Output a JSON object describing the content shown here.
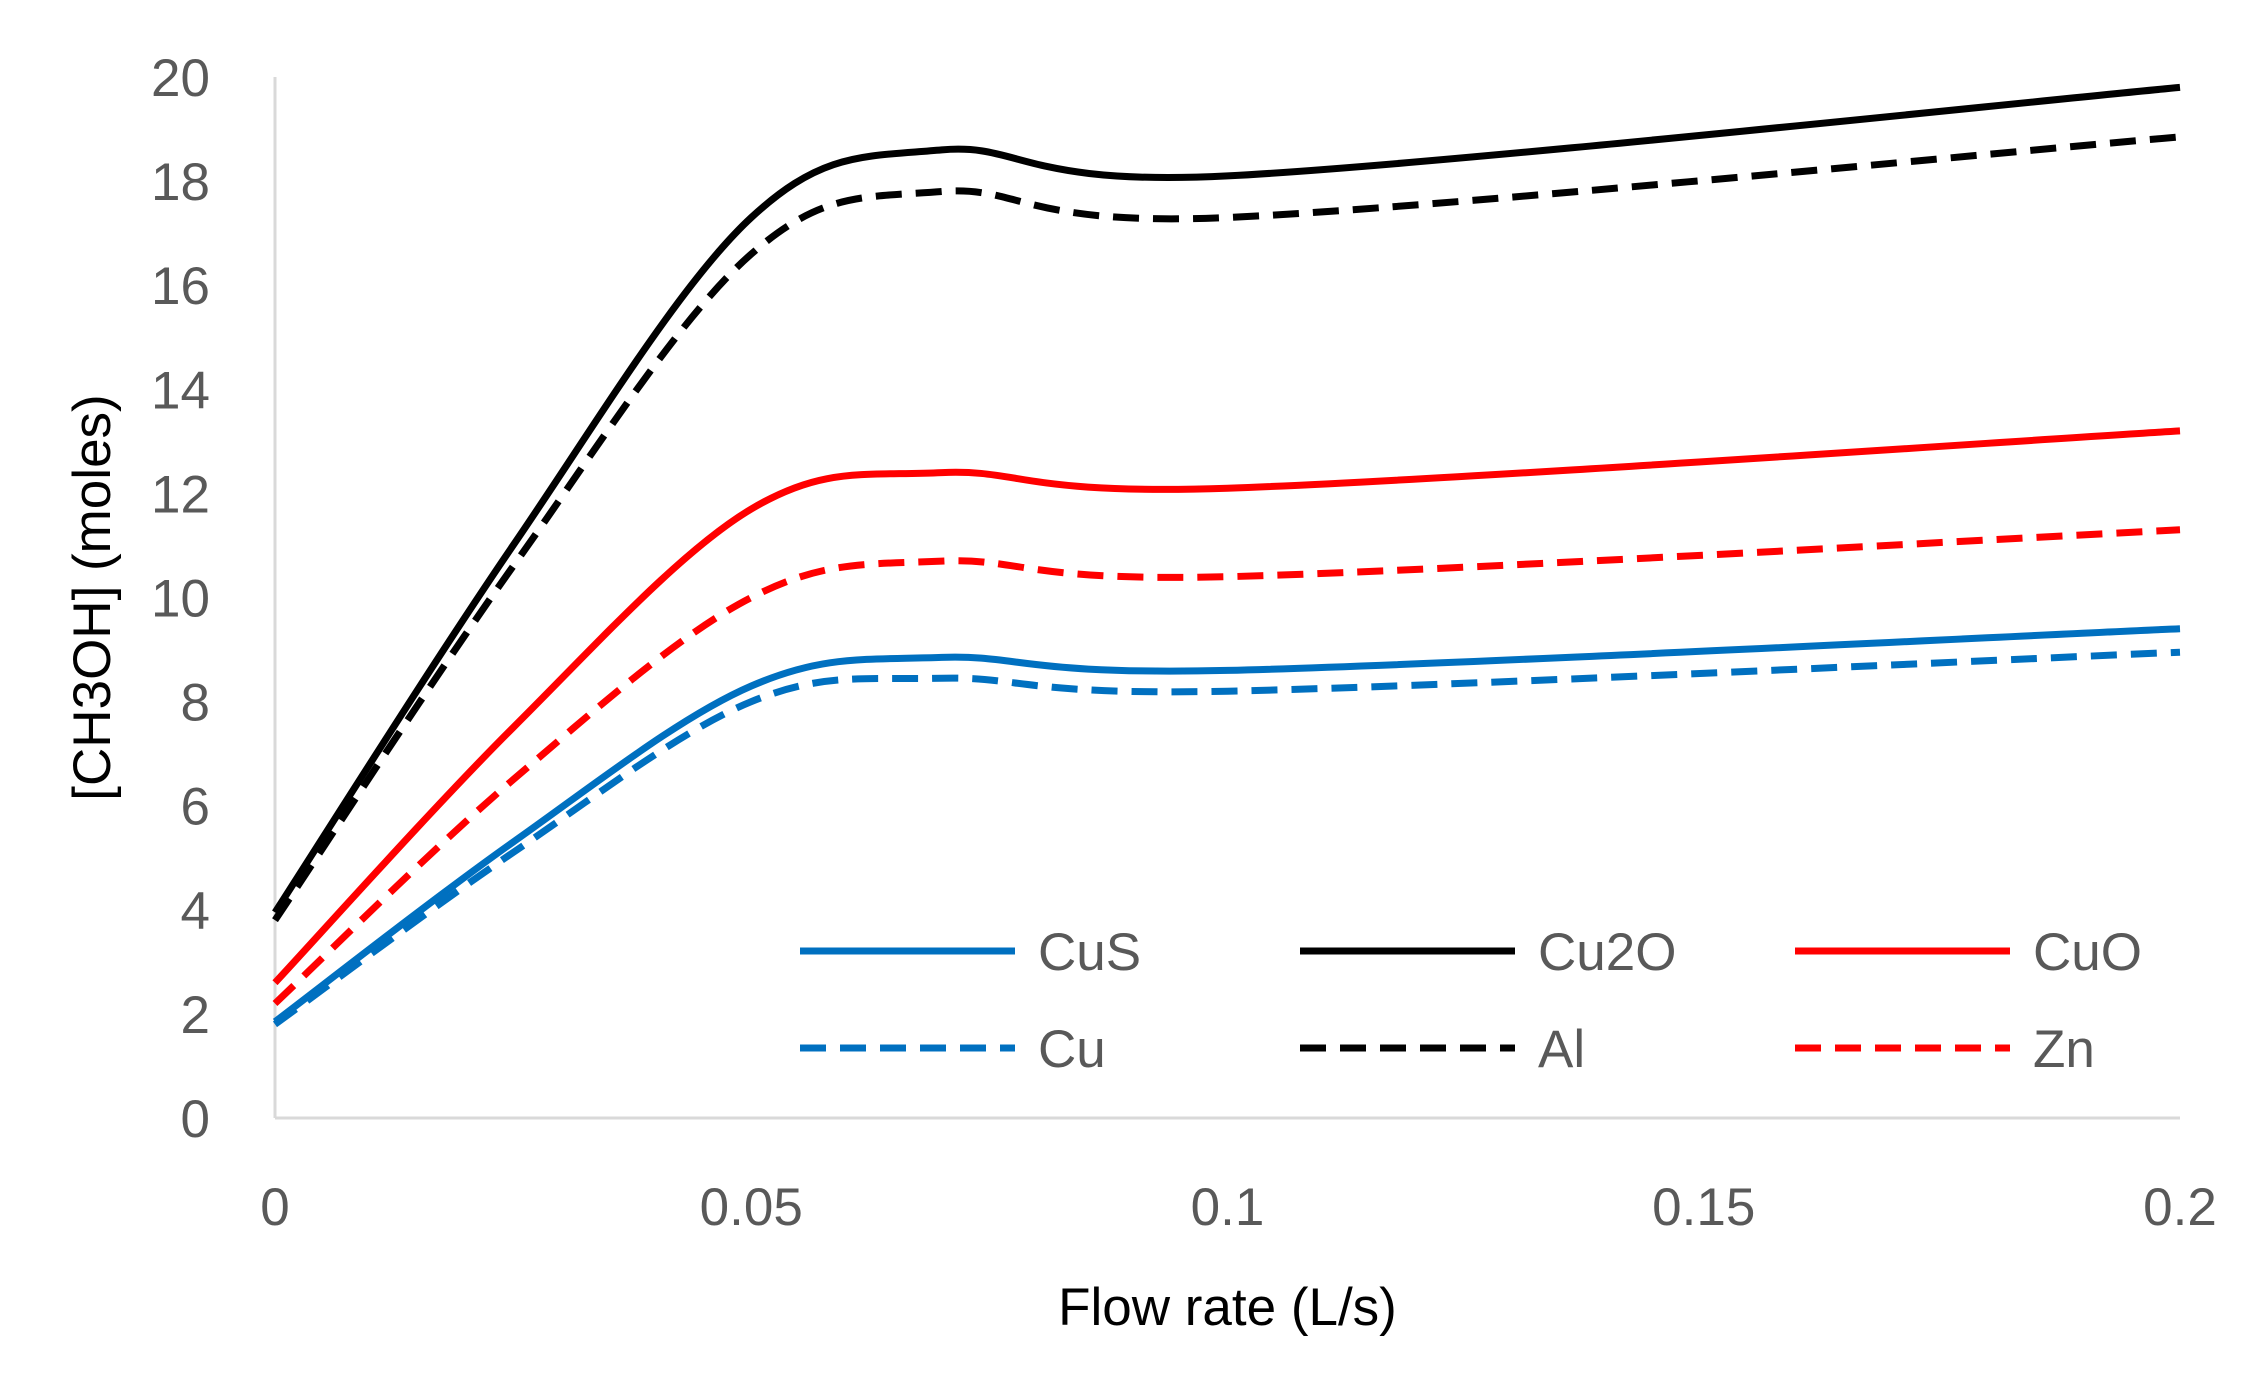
{
  "chart_data": {
    "type": "line",
    "title": "",
    "xlabel": "Flow rate (L/s)",
    "ylabel": "[CH3OH] (moles)",
    "xlim": [
      0,
      0.2
    ],
    "ylim": [
      0,
      20
    ],
    "x_ticks": [
      "0",
      "0.05",
      "0.1",
      "0.15",
      "0.2"
    ],
    "y_ticks": [
      "0",
      "2",
      "4",
      "6",
      "8",
      "10",
      "12",
      "14",
      "16",
      "18",
      "20"
    ],
    "grid": false,
    "legend_position": "bottom-right",
    "x": [
      0,
      0.025,
      0.05,
      0.07,
      0.1,
      0.2
    ],
    "series": [
      {
        "name": "CuS",
        "color": "#0070C0",
        "dash": "solid",
        "values": [
          1.85,
          5.3,
          8.3,
          8.85,
          8.6,
          9.4
        ]
      },
      {
        "name": "Cu2O",
        "color": "#000000",
        "dash": "solid",
        "values": [
          3.95,
          11.0,
          17.3,
          18.6,
          18.1,
          19.8
        ]
      },
      {
        "name": "CuO",
        "color": "#FF0000",
        "dash": "solid",
        "values": [
          2.6,
          7.5,
          11.7,
          12.4,
          12.1,
          13.2
        ]
      },
      {
        "name": "Cu",
        "color": "#0070C0",
        "dash": "dashed",
        "values": [
          1.8,
          5.1,
          8.0,
          8.45,
          8.2,
          8.95
        ]
      },
      {
        "name": "Al",
        "color": "#000000",
        "dash": "dashed",
        "values": [
          3.8,
          10.6,
          16.6,
          17.8,
          17.3,
          18.85
        ]
      },
      {
        "name": "Zn",
        "color": "#FF0000",
        "dash": "dashed",
        "values": [
          2.2,
          6.5,
          10.0,
          10.7,
          10.4,
          11.3
        ]
      }
    ]
  }
}
